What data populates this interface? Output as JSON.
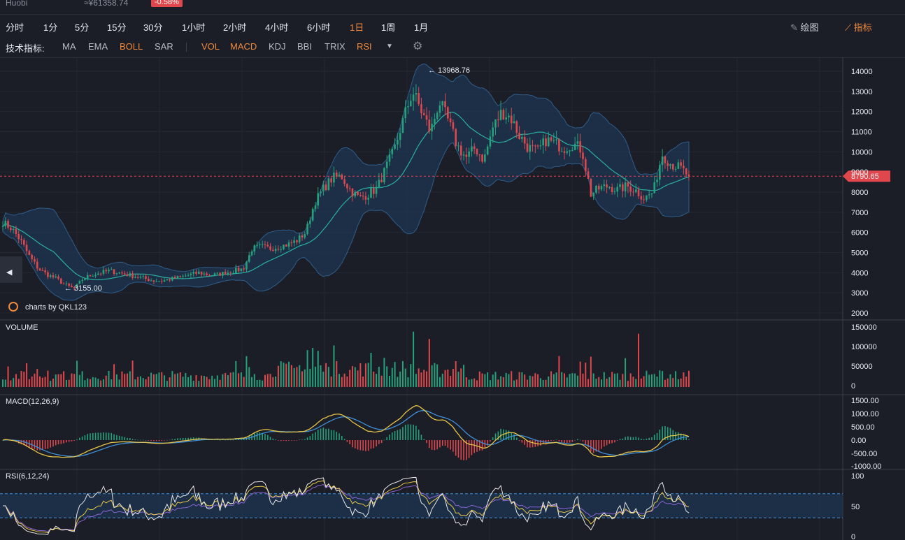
{
  "header": {
    "exchange": "Huobi",
    "price": "≈¥61358.74",
    "change": "-0.58%"
  },
  "intervals": [
    "分时",
    "1分",
    "5分",
    "15分",
    "30分",
    "1小时",
    "2小时",
    "4小时",
    "6小时",
    "1日",
    "1周",
    "1月"
  ],
  "active_interval": "1日",
  "tools": {
    "draw_label": "绘图",
    "indicator_label": "指标"
  },
  "indicators_bar": {
    "label": "技术指标:",
    "main": [
      "MA",
      "EMA",
      "BOLL",
      "SAR"
    ],
    "sub": [
      "VOL",
      "MACD",
      "KDJ",
      "BBI",
      "TRIX",
      "RSI"
    ],
    "active": [
      "BOLL",
      "VOL",
      "MACD",
      "RSI"
    ]
  },
  "watermark": "charts by QKL123",
  "price_panel": {
    "high_marker": "← 13968.76",
    "low_marker": "← 3155.00",
    "current_price": "8790.65",
    "axis_ticks": [
      "14000",
      "13000",
      "12000",
      "11000",
      "10000",
      "9000",
      "8000",
      "7000",
      "6000",
      "5000",
      "4000",
      "3000",
      "2000"
    ]
  },
  "volume_panel": {
    "title": "VOLUME",
    "axis_ticks": [
      "150000",
      "100000",
      "50000",
      "0"
    ]
  },
  "macd_panel": {
    "title": "MACD(12,26,9)",
    "axis_ticks": [
      "1500.00",
      "1000.00",
      "500.00",
      "0.00",
      "-500.00",
      "-1000.00"
    ]
  },
  "rsi_panel": {
    "title": "RSI(6,12,24)",
    "axis_ticks": [
      "100",
      "50",
      "0"
    ]
  },
  "colors": {
    "background": "#1b1e26",
    "up": "#26a17b",
    "down": "#e0474c",
    "accent": "#f08a3c",
    "boll_band": "#1d3553",
    "macd_dif": "#e8c547",
    "macd_dea": "#3e8fd8",
    "rsi_6": "#e8e8e8",
    "rsi_12": "#e8c547",
    "rsi_24": "#8a63d2"
  },
  "icons": {
    "draw": "pencil-icon",
    "indicator": "line-chart-icon",
    "settings": "gear-icon",
    "dropdown": "caret-down-icon",
    "prev": "chevron-left-icon"
  },
  "chart_data": {
    "type": "candlestick",
    "price_range": [
      2000,
      14000
    ],
    "high": 13968.76,
    "low": 3155.0,
    "last": 8790.65,
    "close_path": [
      6500,
      6200,
      5600,
      4800,
      4200,
      3900,
      3700,
      3400,
      3200,
      3700,
      3900,
      4000,
      4100,
      4000,
      3900,
      3800,
      3700,
      3600,
      3600,
      3700,
      3800,
      3900,
      4000,
      3900,
      3900,
      4000,
      4100,
      4200,
      5200,
      5300,
      5200,
      5300,
      5400,
      5600,
      6000,
      7500,
      8200,
      8700,
      8800,
      8100,
      7700,
      7900,
      8200,
      9200,
      10200,
      11700,
      13000,
      12000,
      11000,
      12500,
      11500,
      10300,
      9700,
      10200,
      9600,
      11200,
      12000,
      11700,
      10800,
      10200,
      10000,
      10600,
      10400,
      10200,
      10400,
      10100,
      7900,
      8200,
      8300,
      8100,
      8300,
      8100,
      7700,
      8000,
      9900,
      9400,
      9200,
      8790
    ]
  }
}
